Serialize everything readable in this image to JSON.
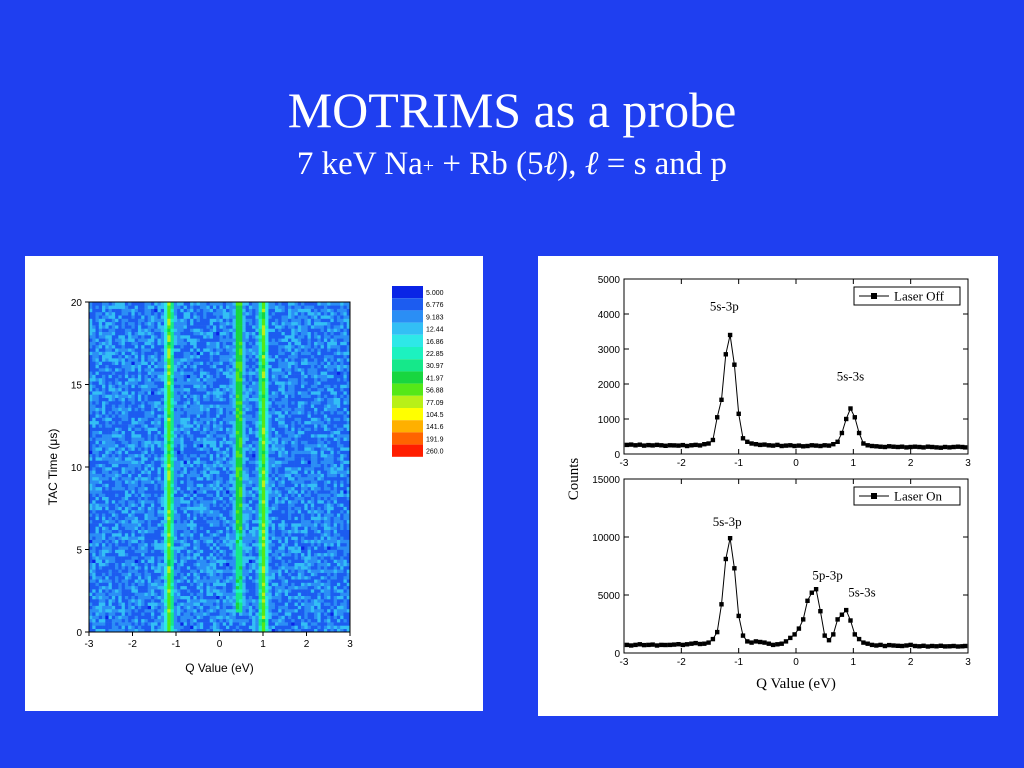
{
  "slide": {
    "title": "MOTRIMS as a probe",
    "subtitle": {
      "prefix": "7 keV Na",
      "sup": "+",
      "middle": " + Rb (5",
      "ell1": "ℓ",
      "after": "), ",
      "ell2": "ℓ",
      "suffix": " = s and p"
    },
    "background_color": "#1f3ff0"
  },
  "chart_data": [
    {
      "type": "heatmap",
      "xlabel": "Q Value (eV)",
      "ylabel": "TAC Time (μs)",
      "xlim": [
        -3,
        3
      ],
      "ylim": [
        0,
        20
      ],
      "xticks": [
        "-3",
        "-2",
        "-1",
        "0",
        "1",
        "2",
        "3"
      ],
      "yticks": [
        "0",
        "5",
        "10",
        "15",
        "20"
      ],
      "colorscale": {
        "levels": [
          "5.000",
          "6.776",
          "9.183",
          "12.44",
          "16.86",
          "22.85",
          "30.97",
          "41.97",
          "56.88",
          "77.09",
          "104.5",
          "141.6",
          "191.9",
          "260.0"
        ],
        "colors": [
          "#0a24e6",
          "#1c5cf0",
          "#2b8ef5",
          "#33bff5",
          "#2ee8e8",
          "#1cf2c0",
          "#15e88a",
          "#18d640",
          "#55e818",
          "#b8f018",
          "#ffff00",
          "#ffb000",
          "#ff6400",
          "#ff1e00"
        ]
      },
      "bands": [
        {
          "q_center": -1.15,
          "tac_range": [
            0,
            20
          ]
        },
        {
          "q_center": 0.45,
          "tac_range": [
            6.2,
            20
          ]
        },
        {
          "q_center": 0.45,
          "tac_range": [
            1.2,
            6.2
          ]
        },
        {
          "q_center": 1.0,
          "tac_range": [
            0,
            20
          ]
        }
      ]
    },
    {
      "type": "line",
      "xlabel": "",
      "ylabel": "Counts",
      "xlim": [
        -3,
        3
      ],
      "ylim": [
        0,
        5000
      ],
      "xticks": [
        "-3",
        "-2",
        "-1",
        "0",
        "1",
        "2",
        "3"
      ],
      "yticks": [
        "0",
        "1000",
        "2000",
        "3000",
        "4000",
        "5000"
      ],
      "legend": "top-right",
      "series": [
        {
          "name": "Laser Off",
          "x": [
            -2.95,
            -2.875,
            -2.8,
            -2.725,
            -2.65,
            -2.575,
            -2.5,
            -2.425,
            -2.35,
            -2.275,
            -2.2,
            -2.125,
            -2.05,
            -1.975,
            -1.9,
            -1.825,
            -1.75,
            -1.675,
            -1.6,
            -1.525,
            -1.45,
            -1.375,
            -1.3,
            -1.225,
            -1.15,
            -1.075,
            -1.0,
            -0.925,
            -0.85,
            -0.775,
            -0.7,
            -0.625,
            -0.55,
            -0.475,
            -0.4,
            -0.325,
            -0.25,
            -0.175,
            -0.1,
            -0.025,
            0.05,
            0.125,
            0.2,
            0.275,
            0.35,
            0.425,
            0.5,
            0.575,
            0.65,
            0.725,
            0.8,
            0.875,
            0.95,
            1.025,
            1.1,
            1.175,
            1.25,
            1.325,
            1.4,
            1.475,
            1.55,
            1.625,
            1.7,
            1.775,
            1.85,
            1.925,
            2.0,
            2.075,
            2.15,
            2.225,
            2.3,
            2.375,
            2.45,
            2.525,
            2.6,
            2.675,
            2.75,
            2.825,
            2.9,
            2.95
          ],
          "y": [
            260,
            270,
            250,
            265,
            240,
            255,
            245,
            260,
            250,
            235,
            250,
            245,
            240,
            255,
            230,
            250,
            260,
            245,
            280,
            300,
            400,
            1050,
            1550,
            2850,
            3400,
            2550,
            1150,
            450,
            350,
            300,
            280,
            260,
            270,
            250,
            240,
            260,
            230,
            240,
            250,
            230,
            240,
            220,
            230,
            250,
            240,
            230,
            250,
            240,
            280,
            350,
            600,
            1000,
            1300,
            1050,
            600,
            300,
            250,
            230,
            220,
            210,
            200,
            220,
            210,
            200,
            210,
            190,
            200,
            210,
            200,
            190,
            210,
            200,
            190,
            180,
            200,
            190,
            200,
            210,
            200,
            190
          ]
        }
      ]
    },
    {
      "type": "line",
      "xlabel": "Q Value (eV)",
      "ylabel": "Counts",
      "xlim": [
        -3,
        3
      ],
      "ylim": [
        0,
        15000
      ],
      "xticks": [
        "-3",
        "-2",
        "-1",
        "0",
        "1",
        "2",
        "3"
      ],
      "yticks": [
        "0",
        "5000",
        "10000",
        "15000"
      ],
      "legend": "top-right",
      "series": [
        {
          "name": "Laser On",
          "x": [
            -2.95,
            -2.875,
            -2.8,
            -2.725,
            -2.65,
            -2.575,
            -2.5,
            -2.425,
            -2.35,
            -2.275,
            -2.2,
            -2.125,
            -2.05,
            -1.975,
            -1.9,
            -1.825,
            -1.75,
            -1.675,
            -1.6,
            -1.525,
            -1.45,
            -1.375,
            -1.3,
            -1.225,
            -1.15,
            -1.075,
            -1.0,
            -0.925,
            -0.85,
            -0.775,
            -0.7,
            -0.625,
            -0.55,
            -0.475,
            -0.4,
            -0.325,
            -0.25,
            -0.175,
            -0.1,
            -0.025,
            0.05,
            0.125,
            0.2,
            0.275,
            0.35,
            0.425,
            0.5,
            0.575,
            0.65,
            0.725,
            0.8,
            0.875,
            0.95,
            1.025,
            1.1,
            1.175,
            1.25,
            1.325,
            1.4,
            1.475,
            1.55,
            1.625,
            1.7,
            1.775,
            1.85,
            1.925,
            2.0,
            2.075,
            2.15,
            2.225,
            2.3,
            2.375,
            2.45,
            2.525,
            2.6,
            2.675,
            2.75,
            2.825,
            2.9,
            2.95
          ],
          "y": [
            700,
            650,
            700,
            750,
            680,
            700,
            720,
            650,
            700,
            690,
            700,
            720,
            760,
            700,
            750,
            800,
            850,
            780,
            800,
            900,
            1200,
            1800,
            4200,
            8100,
            9900,
            7300,
            3200,
            1500,
            1000,
            900,
            1000,
            950,
            900,
            800,
            700,
            750,
            800,
            1000,
            1300,
            1600,
            2100,
            2900,
            4500,
            5200,
            5500,
            3600,
            1500,
            1100,
            1600,
            2900,
            3300,
            3700,
            2800,
            1600,
            1200,
            900,
            800,
            700,
            650,
            700,
            600,
            680,
            650,
            620,
            600,
            650,
            700,
            600,
            580,
            620,
            560,
            600,
            580,
            620,
            570,
            580,
            600,
            560,
            580,
            600
          ]
        }
      ]
    }
  ],
  "annotations": {
    "top": [
      {
        "text": "5s-3p",
        "x": -1.25,
        "y": 4100
      },
      {
        "text": "5s-3s",
        "x": 0.95,
        "y": 2100
      }
    ],
    "bottom": [
      {
        "text": "5s-3p",
        "x": -1.2,
        "y": 10950
      },
      {
        "text": "5p-3p",
        "x": 0.55,
        "y": 6350
      },
      {
        "text": "5s-3s",
        "x": 1.15,
        "y": 4850
      }
    ]
  }
}
